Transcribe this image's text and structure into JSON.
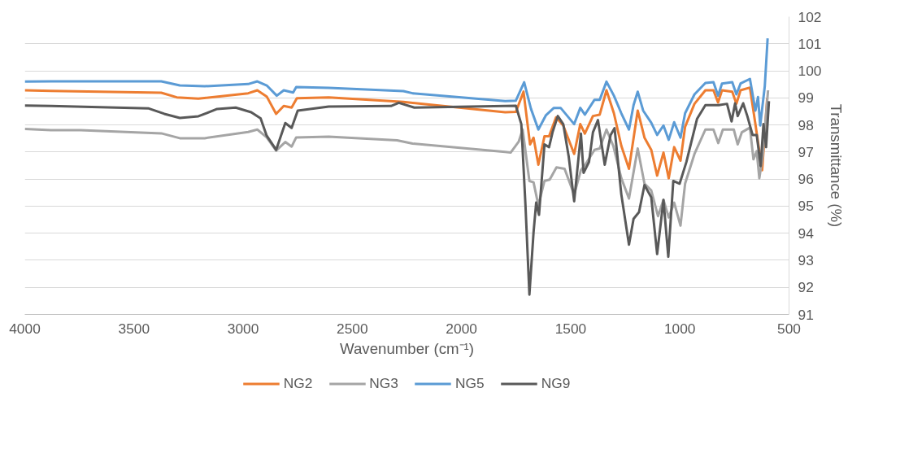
{
  "chart_data": {
    "type": "line",
    "xlabel": "Wavenumber (cm⁻¹)",
    "ylabel": "Transmittance (%)",
    "xlim": [
      4000,
      500
    ],
    "ylim": [
      91,
      102
    ],
    "xticks": [
      4000,
      3500,
      3000,
      2500,
      2000,
      1500,
      1000,
      500
    ],
    "yticks": [
      91,
      92,
      93,
      94,
      95,
      96,
      97,
      98,
      99,
      100,
      101,
      102
    ],
    "grid": "y",
    "legend": "bottom",
    "marker": "none",
    "line_style": "solid",
    "series": [
      {
        "name": "NG2",
        "color": "#ed7d31",
        "x": [
          4000,
          3880,
          3375,
          3304,
          3205,
          2977,
          2935,
          2892,
          2849,
          2814,
          2778,
          2754,
          2608,
          2266,
          1800,
          1751,
          1716,
          1686,
          1670,
          1648,
          1620,
          1599,
          1567,
          1534,
          1484,
          1456,
          1435,
          1398,
          1367,
          1336,
          1302,
          1268,
          1233,
          1193,
          1162,
          1131,
          1104,
          1075,
          1051,
          1026,
          997,
          976,
          933,
          883,
          846,
          825,
          807,
          760,
          741,
          722,
          679,
          654,
          636,
          623,
          600
        ],
        "values": [
          99.28,
          99.26,
          99.19,
          99.02,
          98.97,
          99.17,
          99.28,
          99.05,
          98.41,
          98.7,
          98.64,
          98.99,
          99.02,
          98.85,
          98.47,
          98.48,
          99.23,
          97.28,
          97.53,
          96.53,
          97.58,
          97.58,
          98.28,
          97.98,
          96.93,
          98.03,
          97.68,
          98.33,
          98.38,
          99.28,
          98.43,
          97.23,
          96.38,
          98.53,
          97.53,
          97.08,
          96.13,
          96.98,
          96.03,
          97.18,
          96.68,
          97.93,
          98.78,
          99.28,
          99.28,
          98.83,
          99.28,
          99.23,
          98.78,
          99.28,
          99.38,
          98.03,
          97.03,
          96.33,
          99.0
        ]
      },
      {
        "name": "NG3",
        "color": "#a5a5a5",
        "x": [
          4000,
          3880,
          3745,
          3375,
          3290,
          3176,
          2977,
          2935,
          2892,
          2849,
          2807,
          2778,
          2757,
          2608,
          2295,
          2224,
          1800,
          1775,
          1738,
          1720,
          1689,
          1670,
          1648,
          1620,
          1596,
          1565,
          1528,
          1484,
          1453,
          1429,
          1391,
          1367,
          1336,
          1305,
          1268,
          1233,
          1193,
          1162,
          1131,
          1100,
          1075,
          1051,
          1026,
          997,
          976,
          933,
          883,
          846,
          824,
          803,
          753,
          735,
          716,
          679,
          663,
          648,
          636,
          621,
          596
        ],
        "values": [
          97.85,
          97.81,
          97.81,
          97.69,
          97.51,
          97.51,
          97.74,
          97.83,
          97.54,
          97.05,
          97.37,
          97.2,
          97.54,
          97.57,
          97.43,
          97.31,
          97.0,
          96.98,
          97.38,
          97.83,
          95.93,
          95.88,
          95.03,
          95.93,
          95.98,
          96.43,
          96.38,
          95.43,
          96.33,
          96.58,
          97.08,
          97.13,
          97.83,
          97.23,
          96.03,
          95.28,
          97.13,
          95.83,
          95.58,
          94.63,
          95.23,
          94.58,
          95.13,
          94.28,
          95.83,
          96.93,
          97.83,
          97.83,
          97.33,
          97.83,
          97.83,
          97.28,
          97.73,
          97.9,
          96.73,
          97.03,
          96.03,
          96.83,
          99.28
        ]
      },
      {
        "name": "NG5",
        "color": "#5b9bd5",
        "x": [
          4000,
          3880,
          3375,
          3290,
          3176,
          2977,
          2935,
          2892,
          2846,
          2814,
          2771,
          2757,
          2608,
          2266,
          2224,
          1800,
          1751,
          1713,
          1682,
          1648,
          1614,
          1577,
          1546,
          1484,
          1456,
          1435,
          1391,
          1367,
          1336,
          1302,
          1268,
          1233,
          1212,
          1193,
          1168,
          1131,
          1104,
          1075,
          1051,
          1026,
          997,
          976,
          933,
          883,
          846,
          825,
          807,
          760,
          741,
          722,
          679,
          654,
          642,
          632,
          611,
          598
        ],
        "values": [
          99.6,
          99.61,
          99.61,
          99.46,
          99.43,
          99.51,
          99.61,
          99.46,
          99.08,
          99.28,
          99.2,
          99.4,
          99.37,
          99.25,
          99.17,
          98.88,
          98.9,
          99.58,
          98.6,
          97.83,
          98.35,
          98.63,
          98.63,
          98.03,
          98.63,
          98.38,
          98.93,
          98.93,
          99.6,
          99.08,
          98.43,
          97.83,
          98.73,
          99.23,
          98.53,
          98.08,
          97.63,
          97.98,
          97.45,
          98.1,
          97.53,
          98.43,
          99.13,
          99.55,
          99.58,
          99.08,
          99.53,
          99.58,
          99.13,
          99.53,
          99.7,
          98.53,
          99.03,
          97.98,
          99.43,
          101.2
        ]
      },
      {
        "name": "NG9",
        "color": "#595959",
        "x": [
          4000,
          3880,
          3432,
          3361,
          3290,
          3205,
          3119,
          3034,
          2963,
          2920,
          2892,
          2849,
          2807,
          2778,
          2750,
          2608,
          2323,
          2287,
          2216,
          1800,
          1751,
          1726,
          1707,
          1689,
          1670,
          1658,
          1645,
          1620,
          1599,
          1583,
          1559,
          1534,
          1509,
          1484,
          1453,
          1441,
          1416,
          1398,
          1375,
          1344,
          1317,
          1299,
          1268,
          1233,
          1212,
          1187,
          1162,
          1131,
          1104,
          1075,
          1053,
          1030,
          1001,
          970,
          921,
          883,
          822,
          784,
          763,
          747,
          735,
          710,
          691,
          667,
          648,
          630,
          617,
          605,
          592
        ],
        "values": [
          98.72,
          98.7,
          98.61,
          98.41,
          98.26,
          98.32,
          98.59,
          98.64,
          98.47,
          98.24,
          97.6,
          97.08,
          98.07,
          97.89,
          98.53,
          98.68,
          98.7,
          98.82,
          98.64,
          98.7,
          98.71,
          98.03,
          95.03,
          91.73,
          94.03,
          95.13,
          94.68,
          97.28,
          97.18,
          97.73,
          98.33,
          98.03,
          96.83,
          95.18,
          97.68,
          96.23,
          96.63,
          97.73,
          98.18,
          96.53,
          97.63,
          97.88,
          95.43,
          93.58,
          94.53,
          94.78,
          95.78,
          95.33,
          93.23,
          95.23,
          93.13,
          95.93,
          95.83,
          96.63,
          98.23,
          98.73,
          98.73,
          98.78,
          98.13,
          98.8,
          98.33,
          98.8,
          98.33,
          97.63,
          97.63,
          96.48,
          98.03,
          97.18,
          98.88
        ]
      }
    ]
  }
}
